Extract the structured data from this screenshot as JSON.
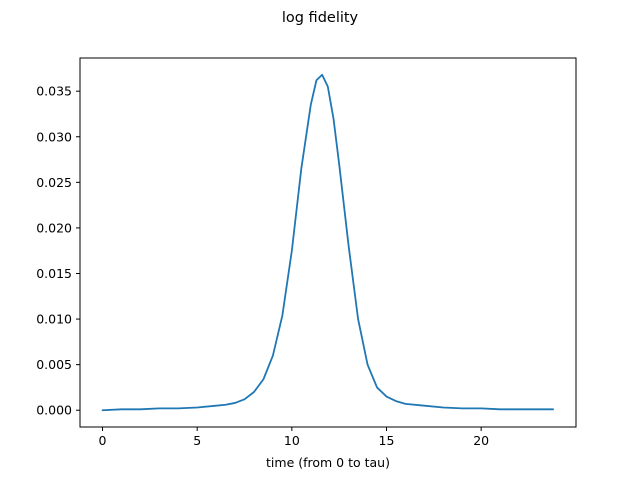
{
  "chart_data": {
    "type": "line",
    "title": "log fidelity",
    "xlabel": "time (from 0 to tau)",
    "ylabel": "",
    "xlim": [
      -1.19,
      25.01
    ],
    "ylim": [
      -0.00184,
      0.03864
    ],
    "xticks": [
      0,
      5,
      10,
      15,
      20
    ],
    "xtick_labels": [
      "0",
      "5",
      "10",
      "15",
      "20"
    ],
    "yticks": [
      0.0,
      0.005,
      0.01,
      0.015,
      0.02,
      0.025,
      0.03,
      0.035
    ],
    "ytick_labels": [
      "0.000",
      "0.005",
      "0.010",
      "0.015",
      "0.020",
      "0.025",
      "0.030",
      "0.035"
    ],
    "grid": false,
    "series": [
      {
        "color": "#1f77b4",
        "x": [
          0,
          1,
          2,
          3,
          4,
          5,
          6,
          6.5,
          7,
          7.5,
          8,
          8.5,
          9,
          9.5,
          10,
          10.5,
          11,
          11.3,
          11.6,
          11.9,
          12.2,
          12.5,
          13,
          13.5,
          14,
          14.5,
          15,
          15.5,
          16,
          17,
          18,
          19,
          20,
          21,
          22,
          23,
          23.8
        ],
        "y": [
          0.0,
          0.0001,
          0.0001,
          0.0002,
          0.0002,
          0.0003,
          0.0005,
          0.0006,
          0.0008,
          0.0012,
          0.002,
          0.0034,
          0.006,
          0.0104,
          0.0175,
          0.0265,
          0.0335,
          0.0362,
          0.0368,
          0.0355,
          0.032,
          0.027,
          0.018,
          0.01,
          0.005,
          0.0025,
          0.0015,
          0.001,
          0.0007,
          0.0005,
          0.0003,
          0.0002,
          0.0002,
          0.0001,
          0.0001,
          0.0001,
          0.0001
        ]
      }
    ]
  }
}
